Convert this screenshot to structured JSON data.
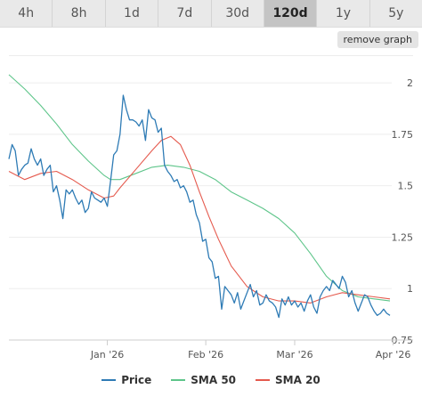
{
  "toolbar": {
    "ranges": [
      "4h",
      "8h",
      "1d",
      "7d",
      "30d",
      "120d",
      "1y",
      "5y"
    ],
    "active_range": "120d",
    "remove_label": "remove graph"
  },
  "colors": {
    "price": "#2e7bb5",
    "sma50": "#5ec58a",
    "sma20": "#e55a4e",
    "grid": "#eeeeee",
    "axis_text": "#555555"
  },
  "chart_data": {
    "type": "line",
    "title": "",
    "xlabel": "",
    "ylabel": "",
    "x_range": [
      0,
      120
    ],
    "ylim": [
      0.75,
      2.1
    ],
    "yticks": [
      {
        "value": 0.75,
        "label": "0.75"
      },
      {
        "value": 1.0,
        "label": "1"
      },
      {
        "value": 1.25,
        "label": "1.25"
      },
      {
        "value": 1.5,
        "label": "1.5"
      },
      {
        "value": 1.75,
        "label": "1.75"
      },
      {
        "value": 2.0,
        "label": "2"
      }
    ],
    "xticks": [
      {
        "x": 31,
        "label": "Jan '26"
      },
      {
        "x": 62,
        "label": "Feb '26"
      },
      {
        "x": 90,
        "label": "Mar '26"
      },
      {
        "x": 121,
        "label": "Apr '26"
      }
    ],
    "legend_position": "bottom",
    "series": [
      {
        "name": "Price",
        "color": "#2e7bb5",
        "points": [
          [
            0,
            1.63
          ],
          [
            1,
            1.7
          ],
          [
            2,
            1.67
          ],
          [
            3,
            1.55
          ],
          [
            4,
            1.58
          ],
          [
            5,
            1.6
          ],
          [
            6,
            1.61
          ],
          [
            7,
            1.68
          ],
          [
            8,
            1.63
          ],
          [
            9,
            1.6
          ],
          [
            10,
            1.63
          ],
          [
            11,
            1.55
          ],
          [
            12,
            1.58
          ],
          [
            13,
            1.6
          ],
          [
            14,
            1.47
          ],
          [
            15,
            1.5
          ],
          [
            16,
            1.43
          ],
          [
            17,
            1.34
          ],
          [
            18,
            1.48
          ],
          [
            19,
            1.46
          ],
          [
            20,
            1.48
          ],
          [
            21,
            1.44
          ],
          [
            22,
            1.41
          ],
          [
            23,
            1.43
          ],
          [
            24,
            1.37
          ],
          [
            25,
            1.39
          ],
          [
            26,
            1.47
          ],
          [
            27,
            1.44
          ],
          [
            28,
            1.43
          ],
          [
            29,
            1.42
          ],
          [
            30,
            1.44
          ],
          [
            31,
            1.4
          ],
          [
            32,
            1.52
          ],
          [
            33,
            1.65
          ],
          [
            34,
            1.67
          ],
          [
            35,
            1.75
          ],
          [
            36,
            1.94
          ],
          [
            37,
            1.87
          ],
          [
            38,
            1.82
          ],
          [
            39,
            1.82
          ],
          [
            40,
            1.81
          ],
          [
            41,
            1.79
          ],
          [
            42,
            1.82
          ],
          [
            43,
            1.72
          ],
          [
            44,
            1.87
          ],
          [
            45,
            1.83
          ],
          [
            46,
            1.82
          ],
          [
            47,
            1.76
          ],
          [
            48,
            1.78
          ],
          [
            49,
            1.6
          ],
          [
            50,
            1.57
          ],
          [
            51,
            1.55
          ],
          [
            52,
            1.52
          ],
          [
            53,
            1.53
          ],
          [
            54,
            1.49
          ],
          [
            55,
            1.5
          ],
          [
            56,
            1.47
          ],
          [
            57,
            1.42
          ],
          [
            58,
            1.43
          ],
          [
            59,
            1.36
          ],
          [
            60,
            1.32
          ],
          [
            61,
            1.23
          ],
          [
            62,
            1.24
          ],
          [
            63,
            1.15
          ],
          [
            64,
            1.13
          ],
          [
            65,
            1.05
          ],
          [
            66,
            1.06
          ],
          [
            67,
            0.9
          ],
          [
            68,
            1.01
          ],
          [
            69,
            0.99
          ],
          [
            70,
            0.97
          ],
          [
            71,
            0.93
          ],
          [
            72,
            0.98
          ],
          [
            73,
            0.9
          ],
          [
            74,
            0.94
          ],
          [
            75,
            0.98
          ],
          [
            76,
            1.02
          ],
          [
            77,
            0.96
          ],
          [
            78,
            0.99
          ],
          [
            79,
            0.92
          ],
          [
            80,
            0.93
          ],
          [
            81,
            0.97
          ],
          [
            82,
            0.94
          ],
          [
            83,
            0.93
          ],
          [
            84,
            0.91
          ],
          [
            85,
            0.86
          ],
          [
            86,
            0.95
          ],
          [
            87,
            0.92
          ],
          [
            88,
            0.96
          ],
          [
            89,
            0.92
          ],
          [
            90,
            0.94
          ],
          [
            91,
            0.91
          ],
          [
            92,
            0.93
          ],
          [
            93,
            0.89
          ],
          [
            94,
            0.94
          ],
          [
            95,
            0.97
          ],
          [
            96,
            0.91
          ],
          [
            97,
            0.88
          ],
          [
            98,
            0.96
          ],
          [
            99,
            0.99
          ],
          [
            100,
            1.01
          ],
          [
            101,
            0.99
          ],
          [
            102,
            1.04
          ],
          [
            103,
            1.02
          ],
          [
            104,
            1.0
          ],
          [
            105,
            1.06
          ],
          [
            106,
            1.03
          ],
          [
            107,
            0.96
          ],
          [
            108,
            0.99
          ],
          [
            109,
            0.93
          ],
          [
            110,
            0.89
          ],
          [
            111,
            0.93
          ],
          [
            112,
            0.97
          ],
          [
            113,
            0.96
          ],
          [
            114,
            0.92
          ],
          [
            115,
            0.89
          ],
          [
            116,
            0.87
          ],
          [
            117,
            0.88
          ],
          [
            118,
            0.9
          ],
          [
            119,
            0.88
          ],
          [
            120,
            0.87
          ]
        ]
      },
      {
        "name": "SMA 50",
        "color": "#5ec58a",
        "points": [
          [
            0,
            2.04
          ],
          [
            5,
            1.97
          ],
          [
            10,
            1.89
          ],
          [
            15,
            1.8
          ],
          [
            20,
            1.7
          ],
          [
            25,
            1.62
          ],
          [
            30,
            1.55
          ],
          [
            32,
            1.53
          ],
          [
            35,
            1.53
          ],
          [
            40,
            1.56
          ],
          [
            45,
            1.59
          ],
          [
            50,
            1.6
          ],
          [
            55,
            1.59
          ],
          [
            60,
            1.57
          ],
          [
            65,
            1.53
          ],
          [
            70,
            1.47
          ],
          [
            75,
            1.43
          ],
          [
            80,
            1.39
          ],
          [
            85,
            1.34
          ],
          [
            90,
            1.27
          ],
          [
            95,
            1.17
          ],
          [
            100,
            1.06
          ],
          [
            105,
            0.99
          ],
          [
            110,
            0.96
          ],
          [
            115,
            0.95
          ],
          [
            120,
            0.94
          ]
        ]
      },
      {
        "name": "SMA 20",
        "color": "#e55a4e",
        "points": [
          [
            0,
            1.57
          ],
          [
            5,
            1.53
          ],
          [
            10,
            1.56
          ],
          [
            15,
            1.57
          ],
          [
            20,
            1.53
          ],
          [
            25,
            1.48
          ],
          [
            30,
            1.44
          ],
          [
            33,
            1.45
          ],
          [
            35,
            1.49
          ],
          [
            40,
            1.58
          ],
          [
            45,
            1.67
          ],
          [
            48,
            1.72
          ],
          [
            51,
            1.74
          ],
          [
            54,
            1.7
          ],
          [
            57,
            1.6
          ],
          [
            60,
            1.47
          ],
          [
            63,
            1.35
          ],
          [
            66,
            1.24
          ],
          [
            70,
            1.11
          ],
          [
            75,
            1.01
          ],
          [
            80,
            0.96
          ],
          [
            85,
            0.94
          ],
          [
            90,
            0.94
          ],
          [
            95,
            0.93
          ],
          [
            100,
            0.96
          ],
          [
            105,
            0.98
          ],
          [
            110,
            0.97
          ],
          [
            115,
            0.96
          ],
          [
            120,
            0.95
          ]
        ]
      }
    ]
  }
}
